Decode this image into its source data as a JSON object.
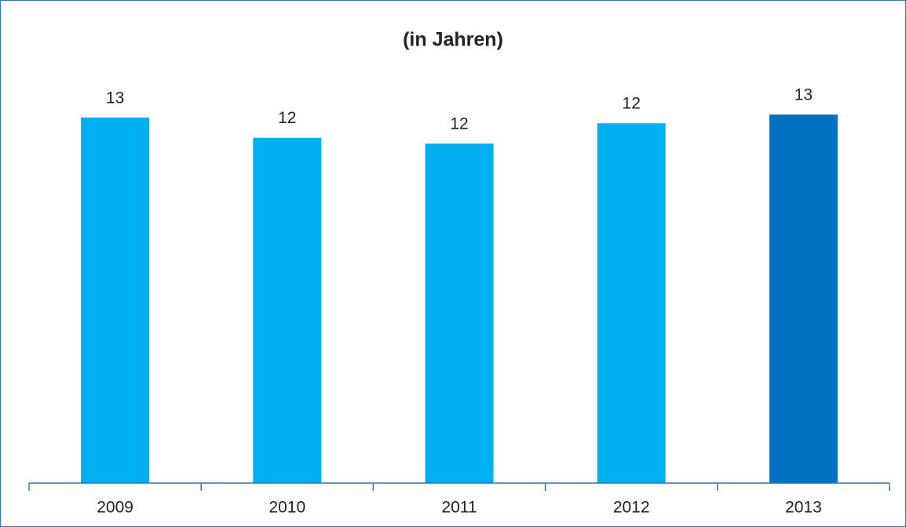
{
  "chart_data": {
    "type": "bar",
    "title": "(in Jahren)",
    "categories": [
      "2009",
      "2010",
      "2011",
      "2012",
      "2013"
    ],
    "values": [
      12.6,
      11.9,
      11.7,
      12.4,
      12.7
    ],
    "value_labels": [
      "13",
      "12",
      "12",
      "12",
      "13"
    ],
    "colors": [
      "#00b0f0",
      "#00b0f0",
      "#00b0f0",
      "#00b0f0",
      "#0070c0"
    ]
  }
}
